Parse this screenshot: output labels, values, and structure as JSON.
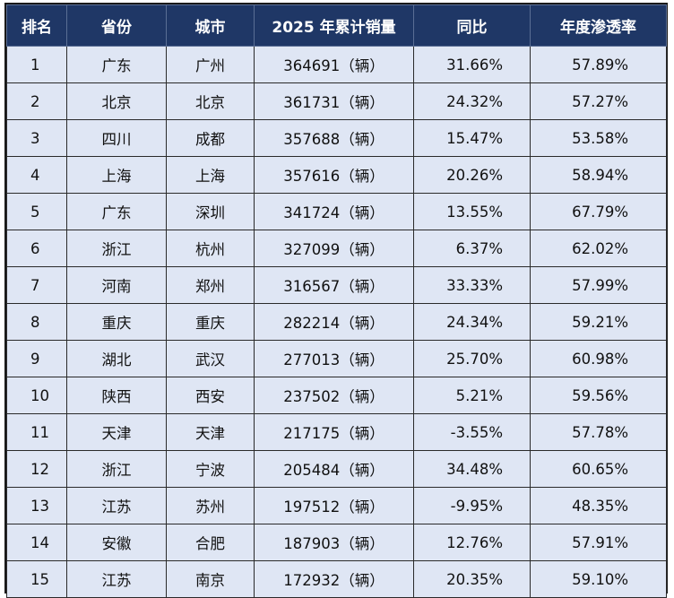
{
  "chart_data": {
    "type": "table",
    "columns": [
      "排名",
      "省份",
      "城市",
      "2025 年累计销量",
      "同比",
      "年度渗透率"
    ],
    "rows": [
      {
        "rank": "1",
        "province": "广东",
        "city": "广州",
        "sales": "364691（辆）",
        "yoy": "31.66%",
        "penetration": "57.89%"
      },
      {
        "rank": "2",
        "province": "北京",
        "city": "北京",
        "sales": "361731（辆）",
        "yoy": "24.32%",
        "penetration": "57.27%"
      },
      {
        "rank": "3",
        "province": "四川",
        "city": "成都",
        "sales": "357688（辆）",
        "yoy": "15.47%",
        "penetration": "53.58%"
      },
      {
        "rank": "4",
        "province": "上海",
        "city": "上海",
        "sales": "357616（辆）",
        "yoy": "20.26%",
        "penetration": "58.94%"
      },
      {
        "rank": "5",
        "province": "广东",
        "city": "深圳",
        "sales": "341724（辆）",
        "yoy": "13.55%",
        "penetration": "67.79%"
      },
      {
        "rank": "6",
        "province": "浙江",
        "city": "杭州",
        "sales": "327099（辆）",
        "yoy": "6.37%",
        "penetration": "62.02%"
      },
      {
        "rank": "7",
        "province": "河南",
        "city": "郑州",
        "sales": "316567（辆）",
        "yoy": "33.33%",
        "penetration": "57.99%"
      },
      {
        "rank": "8",
        "province": "重庆",
        "city": "重庆",
        "sales": "282214（辆）",
        "yoy": "24.34%",
        "penetration": "59.21%"
      },
      {
        "rank": "9",
        "province": "湖北",
        "city": "武汉",
        "sales": "277013（辆）",
        "yoy": "25.70%",
        "penetration": "60.98%"
      },
      {
        "rank": "10",
        "province": "陕西",
        "city": "西安",
        "sales": "237502（辆）",
        "yoy": "5.21%",
        "penetration": "59.56%"
      },
      {
        "rank": "11",
        "province": "天津",
        "city": "天津",
        "sales": "217175（辆）",
        "yoy": "-3.55%",
        "penetration": "57.78%"
      },
      {
        "rank": "12",
        "province": "浙江",
        "city": "宁波",
        "sales": "205484（辆）",
        "yoy": "34.48%",
        "penetration": "60.65%"
      },
      {
        "rank": "13",
        "province": "江苏",
        "city": "苏州",
        "sales": "197512（辆）",
        "yoy": "-9.95%",
        "penetration": "48.35%"
      },
      {
        "rank": "14",
        "province": "安徽",
        "city": "合肥",
        "sales": "187903（辆）",
        "yoy": "12.76%",
        "penetration": "57.91%"
      },
      {
        "rank": "15",
        "province": "江苏",
        "city": "南京",
        "sales": "172932（辆）",
        "yoy": "20.35%",
        "penetration": "59.10%"
      }
    ]
  },
  "colors": {
    "header_bg": "#1f3766",
    "header_text": "#ffffff",
    "cell_bg": "#dfe6f4",
    "border": "#2a2a2a"
  }
}
